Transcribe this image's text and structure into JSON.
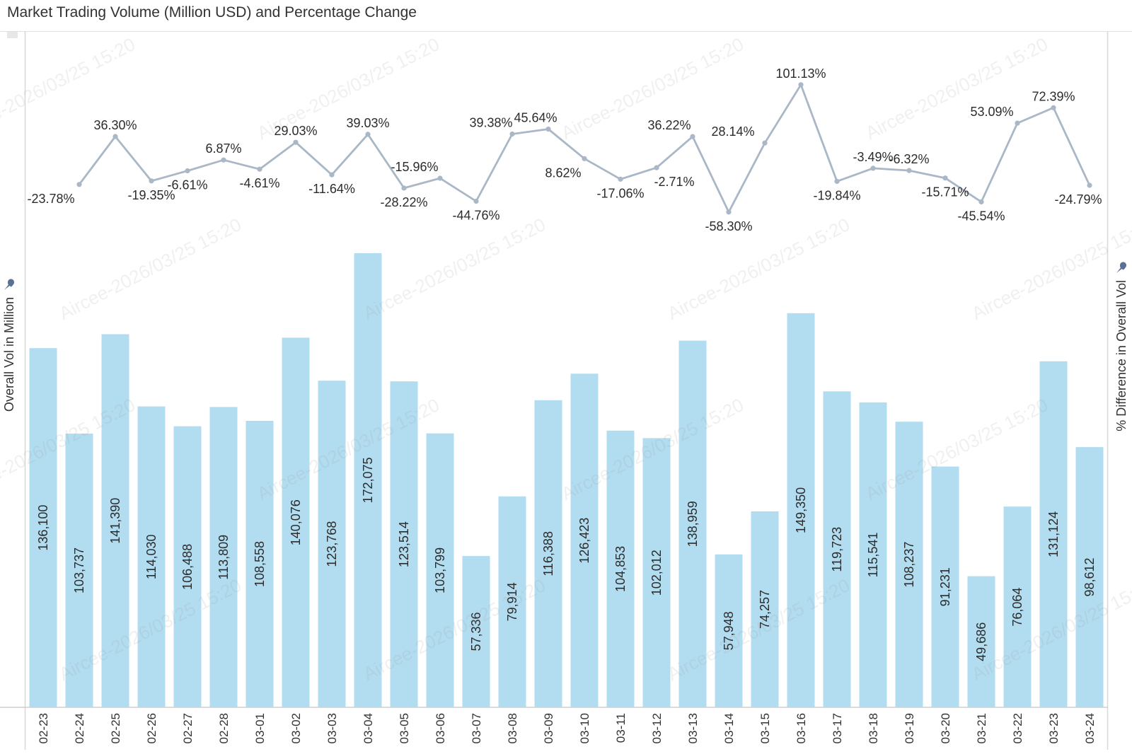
{
  "title": "Market Trading Volume (Million USD) and Percentage Change",
  "watermark": {
    "text": "Aircee-2026/03/25 15:20"
  },
  "left_axis": {
    "label": "Overall Vol in Million"
  },
  "right_axis": {
    "label": "% Difference in Overall Vol"
  },
  "colors": {
    "bar": "#b2dcf0",
    "line": "#a9b7c6",
    "label_text": "#2b2b2b",
    "axis_line": "#d8d8d8",
    "baseline": "#cfcfcf",
    "pin": "#5a7194"
  },
  "chart_data": {
    "type": "combo",
    "title": "Market Trading Volume (Million USD) and Percentage Change",
    "grid": false,
    "categories": [
      "02-23",
      "02-24",
      "02-25",
      "02-26",
      "02-27",
      "02-28",
      "03-01",
      "03-02",
      "03-03",
      "03-04",
      "03-05",
      "03-06",
      "03-07",
      "03-08",
      "03-09",
      "03-10",
      "03-11",
      "03-12",
      "03-13",
      "03-14",
      "03-15",
      "03-16",
      "03-17",
      "03-18",
      "03-19",
      "03-20",
      "03-21",
      "03-22",
      "03-23",
      "03-24"
    ],
    "series": [
      {
        "name": "Overall Vol in Million",
        "type": "bar",
        "color": "#b2dcf0",
        "label_format": "#,###",
        "values": [
          136100,
          103737,
          141390,
          114030,
          106488,
          113809,
          108558,
          140076,
          123768,
          172075,
          123514,
          103799,
          57336,
          79914,
          116388,
          126423,
          104853,
          102012,
          138959,
          57948,
          74257,
          149350,
          119723,
          115541,
          108237,
          91231,
          49686,
          76064,
          131124,
          98612
        ]
      },
      {
        "name": "% Difference in Overall Vol",
        "type": "line",
        "color": "#a9b7c6",
        "label_format": "0.00%",
        "starts_at_category_index": 1,
        "values": [
          -23.78,
          36.3,
          -19.35,
          -6.61,
          6.87,
          -4.61,
          29.03,
          -11.64,
          39.03,
          -28.22,
          -15.96,
          -44.76,
          39.38,
          45.64,
          8.62,
          -17.06,
          -2.71,
          36.22,
          -58.3,
          28.14,
          101.13,
          -19.84,
          -3.49,
          -6.32,
          -15.71,
          -45.54,
          53.09,
          72.39,
          -24.79
        ],
        "label_side": [
          "below",
          "above",
          "below",
          "below",
          "above",
          "below",
          "above",
          "below",
          "above",
          "below",
          "above",
          "below",
          "above",
          "above",
          "below",
          "below",
          "below",
          "above",
          "below",
          "above",
          "above",
          "below",
          "above",
          "above",
          "below",
          "below",
          "above",
          "above",
          "below"
        ]
      }
    ],
    "bar_axis": {
      "min": 0,
      "label": "Overall Vol in Million"
    },
    "line_axis": {
      "label": "% Difference in Overall Vol"
    }
  }
}
